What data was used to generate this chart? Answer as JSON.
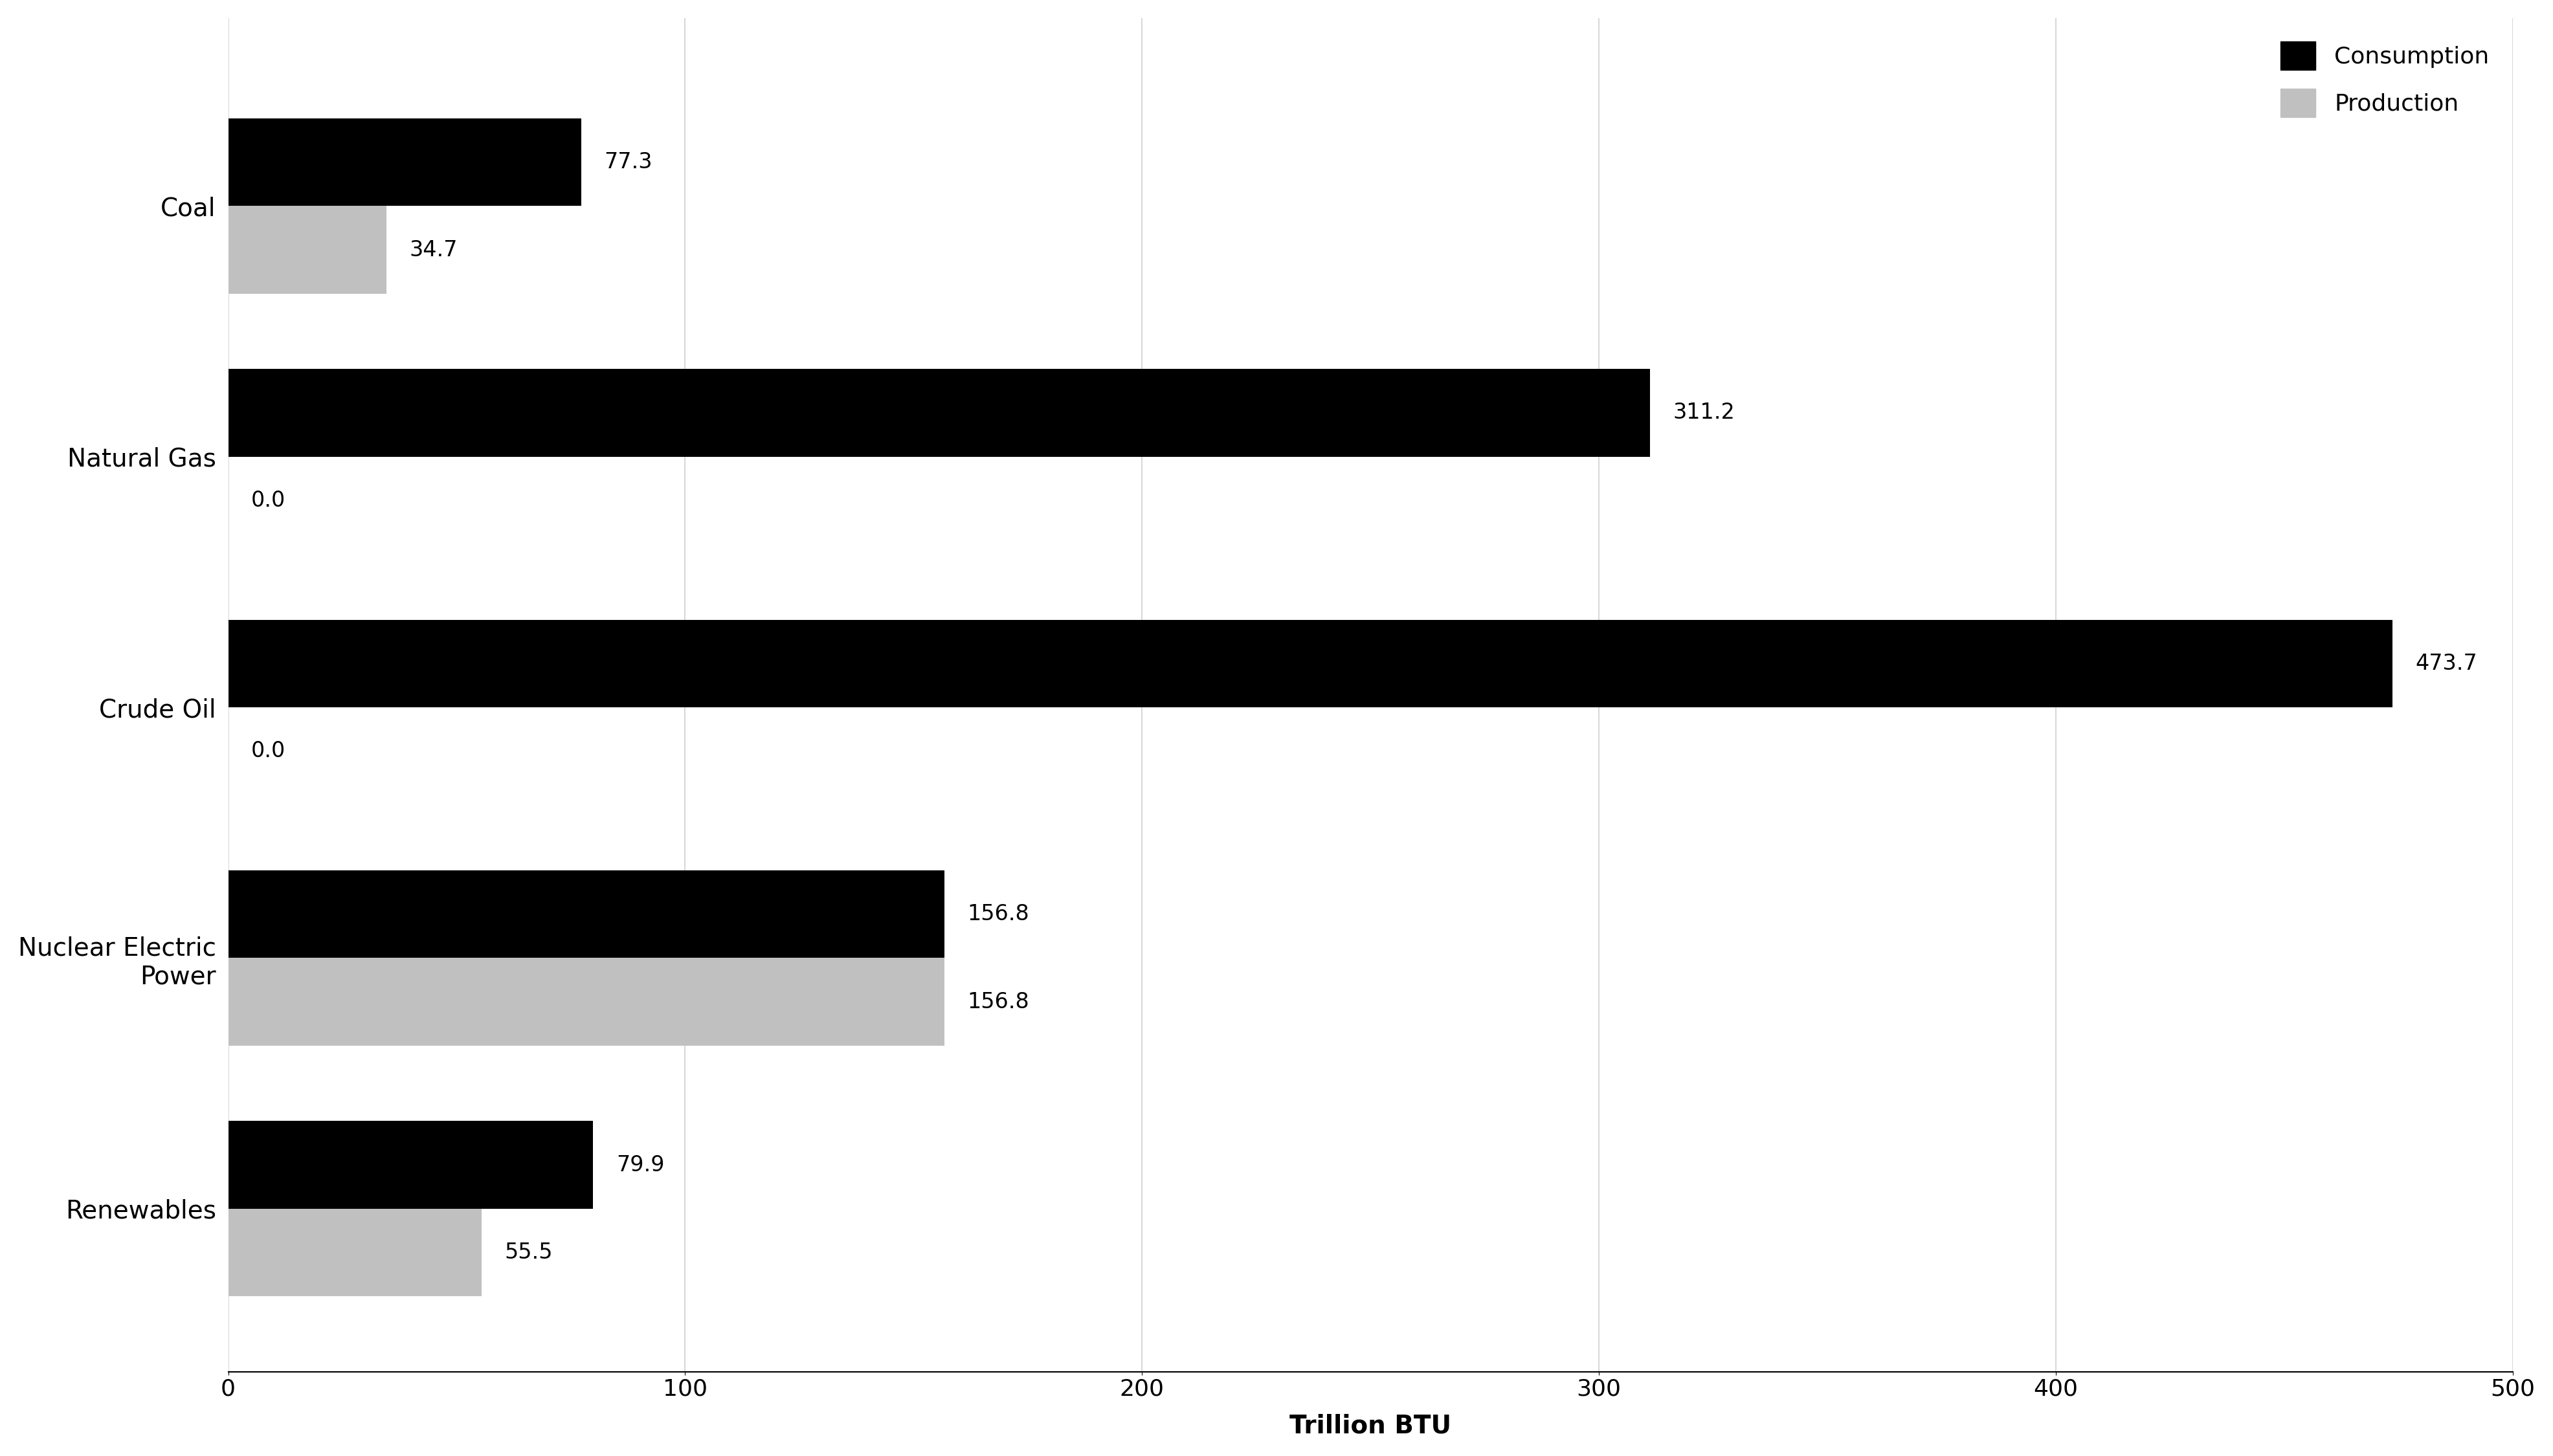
{
  "categories": [
    "Coal",
    "Natural Gas",
    "Crude Oil",
    "Nuclear Electric\nPower",
    "Renewables"
  ],
  "consumption": [
    77.3,
    311.2,
    473.7,
    156.8,
    79.9
  ],
  "production": [
    34.7,
    0.0,
    0.0,
    156.8,
    55.5
  ],
  "consumption_color": "#000000",
  "production_color": "#c0c0c0",
  "bar_height": 0.35,
  "xlim": [
    0,
    500
  ],
  "xticks": [
    0,
    100,
    200,
    300,
    400,
    500
  ],
  "xlabel": "Trillion BTU",
  "xlabel_fontsize": 28,
  "xlabel_fontweight": "bold",
  "tick_fontsize": 26,
  "label_fontsize": 28,
  "value_fontsize": 24,
  "legend_fontsize": 26,
  "background_color": "#ffffff",
  "grid_color": "#d0d0d0",
  "legend_entries": [
    "Consumption",
    "Production"
  ]
}
